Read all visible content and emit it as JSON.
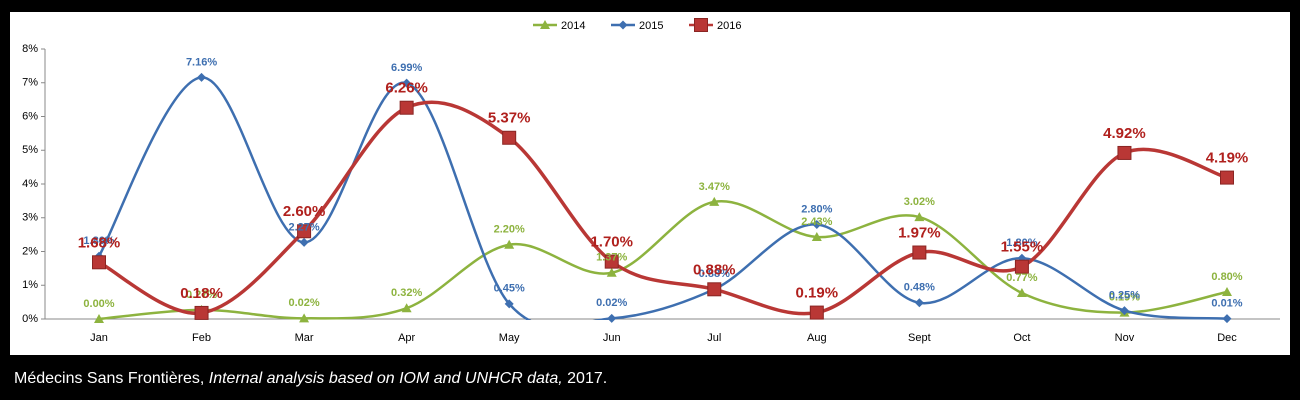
{
  "chart_data": {
    "type": "line",
    "categories": [
      "Jan",
      "Feb",
      "Mar",
      "Apr",
      "May",
      "Jun",
      "Jul",
      "Aug",
      "Sept",
      "Oct",
      "Nov",
      "Dec"
    ],
    "series": [
      {
        "name": "2014",
        "color": "#8db33f",
        "marker": "triangle",
        "values": [
          0.0,
          0.27,
          0.02,
          0.32,
          2.2,
          1.37,
          3.47,
          2.43,
          3.02,
          0.77,
          0.19,
          0.8
        ],
        "value_labels": [
          "0.00%",
          "0.27%",
          "0.02%",
          "0.32%",
          "2.20%",
          "1.37%",
          "3.47%",
          "2.43%",
          "3.02%",
          "0.77%",
          "0.19%",
          "0.80%"
        ]
      },
      {
        "name": "2015",
        "color": "#3e6fb0",
        "marker": "diamond",
        "values": [
          1.86,
          7.16,
          2.27,
          6.99,
          0.45,
          0.02,
          0.88,
          2.8,
          0.48,
          1.8,
          0.25,
          0.01
        ],
        "value_labels": [
          "1.86%",
          "7.16%",
          "2.27%",
          "6.99%",
          "0.45%",
          "0.02%",
          "0.88%",
          "2.80%",
          "0.48%",
          "1.80%",
          "0.25%",
          "0.01%"
        ]
      },
      {
        "name": "2016",
        "color": "#b93735",
        "marker": "square",
        "values": [
          1.68,
          0.18,
          2.6,
          6.26,
          5.37,
          1.7,
          0.88,
          0.19,
          1.97,
          1.55,
          4.92,
          4.19
        ],
        "value_labels": [
          "1.68%",
          "0.18%",
          "2.60%",
          "6.26%",
          "5.37%",
          "1.70%",
          "0.88%",
          "0.19%",
          "1.97%",
          "1.55%",
          "4.92%",
          "4.19%"
        ]
      }
    ],
    "ylim": [
      0,
      8
    ],
    "yticks": [
      {
        "value": 0,
        "label": "0%"
      },
      {
        "value": 1,
        "label": "1%"
      },
      {
        "value": 2,
        "label": "2%"
      },
      {
        "value": 3,
        "label": "3%"
      },
      {
        "value": 4,
        "label": "4%"
      },
      {
        "value": 5,
        "label": "5%"
      },
      {
        "value": 6,
        "label": "6%"
      },
      {
        "value": 7,
        "label": "7%"
      },
      {
        "value": 8,
        "label": "8%"
      }
    ],
    "smooth": true,
    "legend": "top"
  },
  "caption": {
    "author": "Médecins Sans Frontières, ",
    "title": "Internal analysis based on IOM and UNHCR data,",
    "year": " 2017."
  }
}
